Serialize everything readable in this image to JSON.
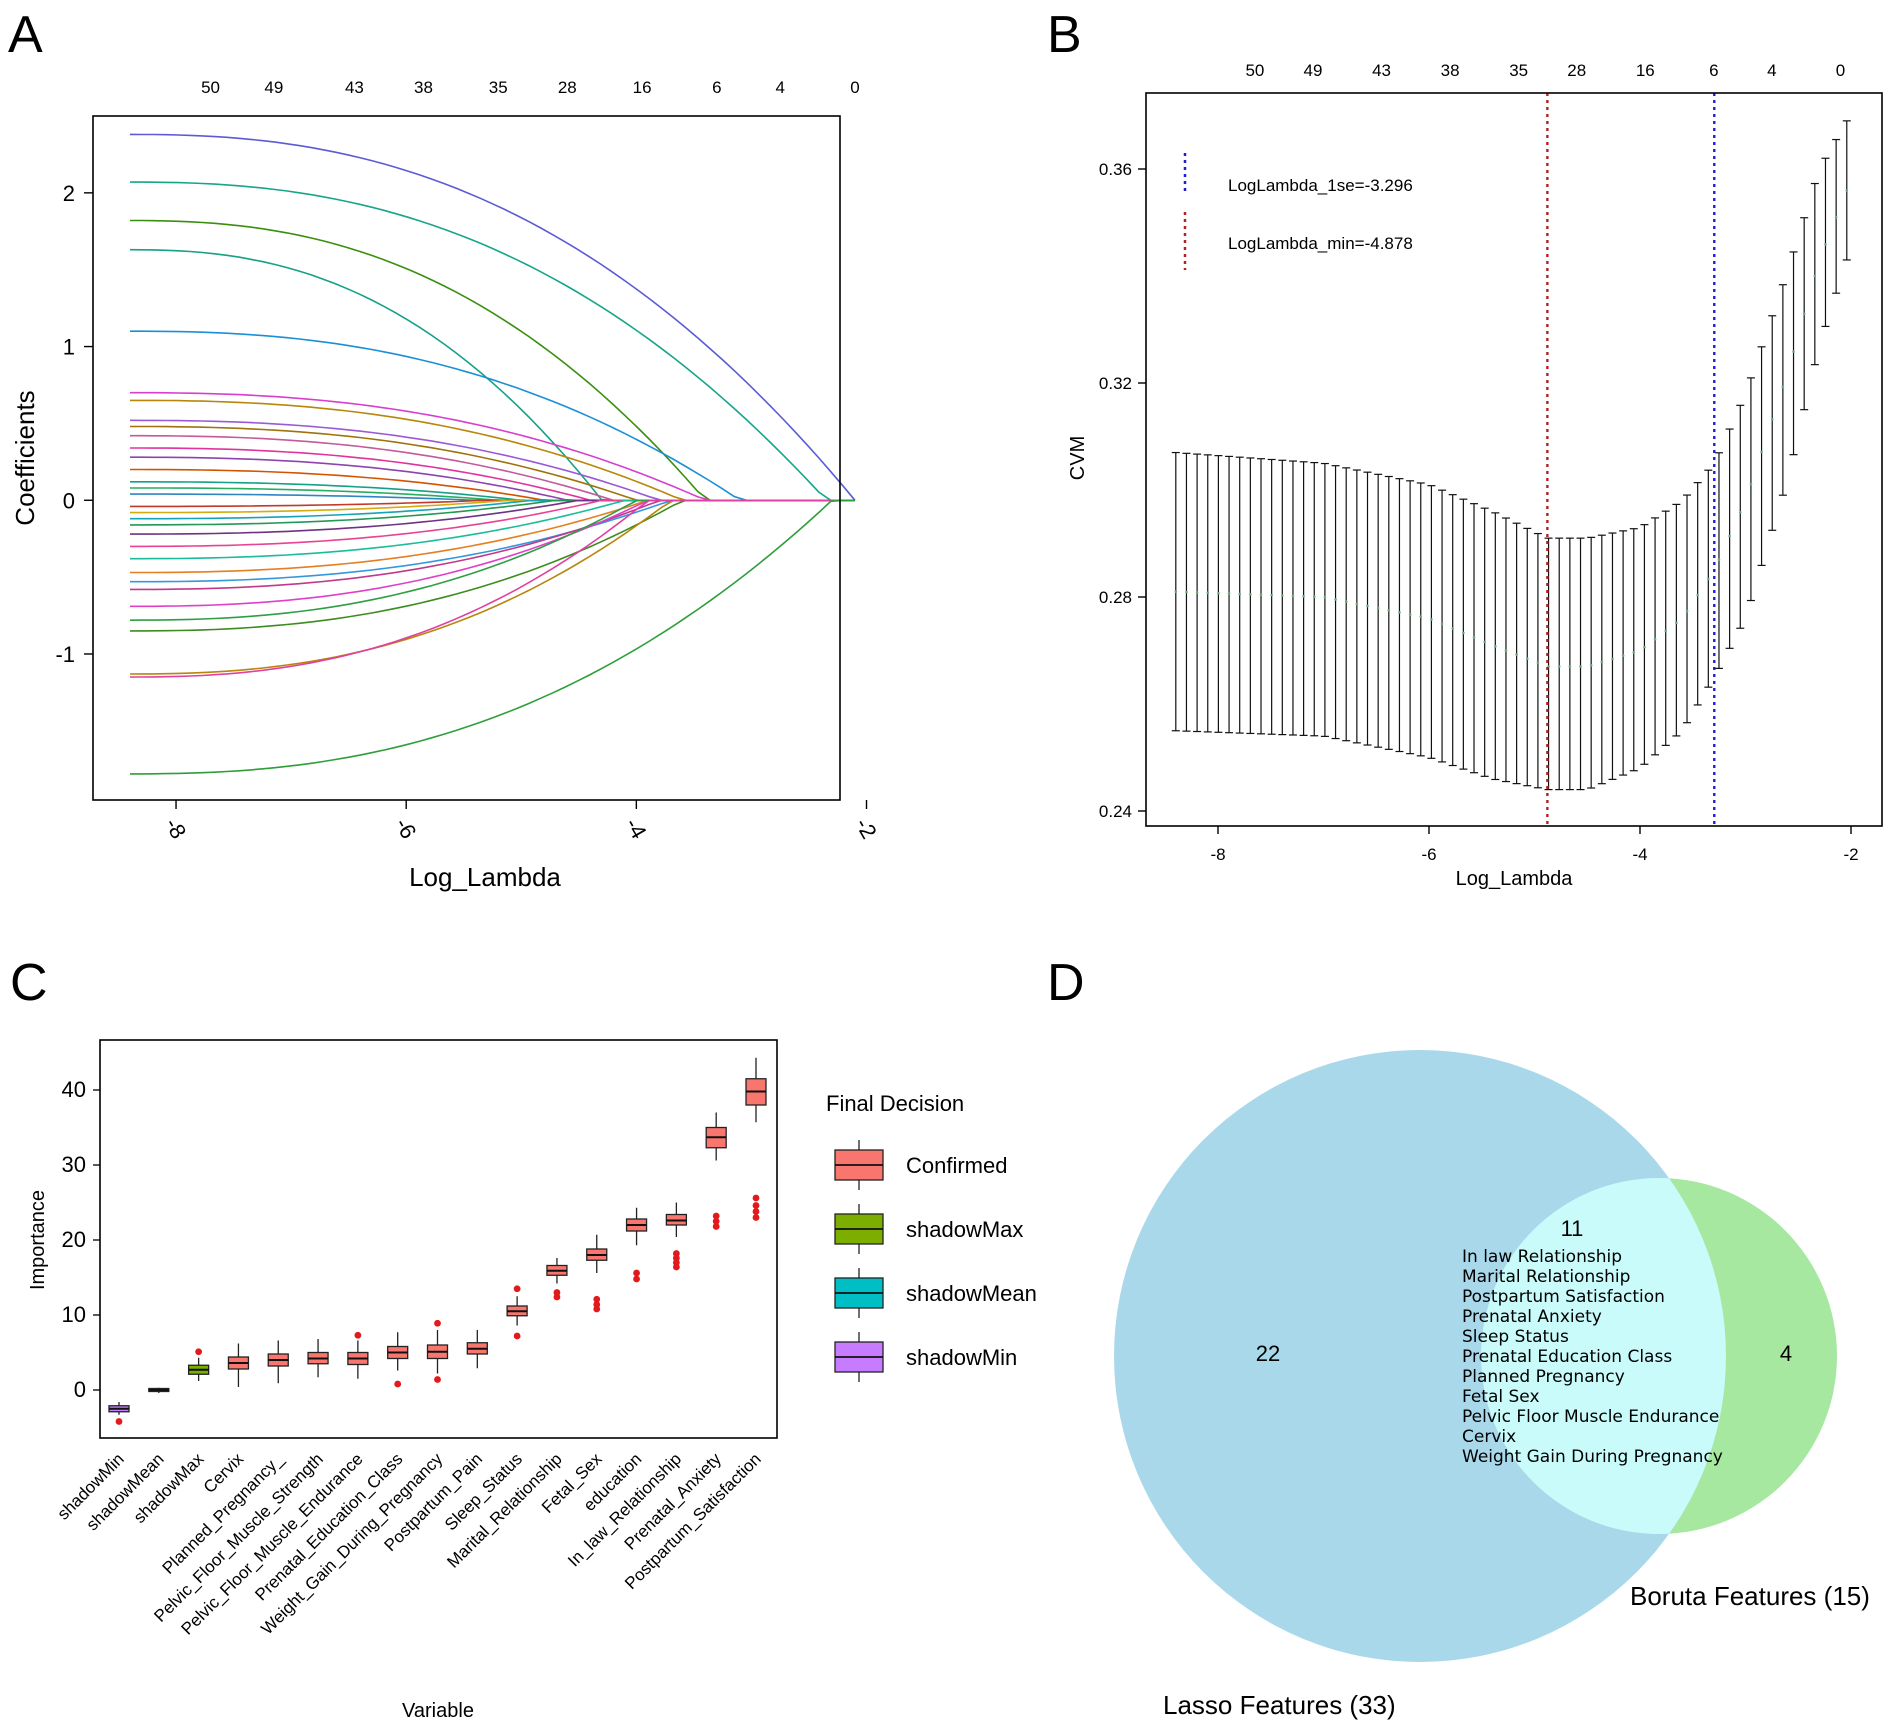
{
  "panels": {
    "a": "A",
    "b": "B",
    "c": "C",
    "d": "D"
  },
  "colors": {
    "confirmed": "#f8766d",
    "shadowMax": "#7cae00",
    "shadowMean": "#00bfc4",
    "shadowMin": "#c77cff",
    "outlier": "#e31a1c",
    "lambda_min_line": "#b22222",
    "lambda_1se_line": "#1f1fd1",
    "lasso_circle": "#a8d8ea",
    "boruta_circle": "#a6e8a0",
    "overlap": "#c9fbfb"
  },
  "chart_data": [
    {
      "id": "A",
      "type": "line",
      "title": "",
      "xlabel": "Log_Lambda",
      "ylabel": "Coefficients",
      "xlim": [
        -8.4,
        -2.0
      ],
      "ylim": [
        -1.95,
        2.5
      ],
      "x_ticks": [
        -8,
        -6,
        -4,
        -2
      ],
      "x_tick_labels": [
        "-8",
        "-6",
        "-4",
        "-2"
      ],
      "y_ticks": [
        -1,
        0,
        1,
        2
      ],
      "y_tick_labels": [
        "-1",
        "0",
        "1",
        "2"
      ],
      "top_ticks": [
        {
          "x": -7.7,
          "label": "50"
        },
        {
          "x": -7.15,
          "label": "49"
        },
        {
          "x": -6.45,
          "label": "43"
        },
        {
          "x": -5.85,
          "label": "38"
        },
        {
          "x": -5.2,
          "label": "35"
        },
        {
          "x": -4.6,
          "label": "28"
        },
        {
          "x": -3.95,
          "label": "16"
        },
        {
          "x": -3.3,
          "label": "6"
        },
        {
          "x": -2.75,
          "label": "4"
        },
        {
          "x": -2.1,
          "label": "0"
        }
      ],
      "path_end": -2.1,
      "series": [
        {
          "start": 2.38,
          "zero_at": -2.1,
          "color": "#5b5bd6"
        },
        {
          "start": 2.07,
          "zero_at": -2.35,
          "color": "#17a589"
        },
        {
          "start": 1.82,
          "zero_at": -3.4,
          "color": "#3a8f0e"
        },
        {
          "start": 1.63,
          "zero_at": -4.3,
          "color": "#16a085"
        },
        {
          "start": 1.1,
          "zero_at": -3.1,
          "color": "#1b8fd6"
        },
        {
          "start": 0.7,
          "zero_at": -3.4,
          "color": "#d63fcf"
        },
        {
          "start": 0.65,
          "zero_at": -3.6,
          "color": "#b8860b"
        },
        {
          "start": 0.52,
          "zero_at": -3.8,
          "color": "#9b59d6"
        },
        {
          "start": 0.48,
          "zero_at": -4.0,
          "color": "#a0720b"
        },
        {
          "start": 0.42,
          "zero_at": -4.2,
          "color": "#c45a9a"
        },
        {
          "start": 0.34,
          "zero_at": -4.4,
          "color": "#e0339c"
        },
        {
          "start": 0.28,
          "zero_at": -4.6,
          "color": "#8e44ad"
        },
        {
          "start": 0.2,
          "zero_at": -4.8,
          "color": "#d35400"
        },
        {
          "start": 0.12,
          "zero_at": -5.0,
          "color": "#16a085"
        },
        {
          "start": 0.08,
          "zero_at": -5.2,
          "color": "#27ae60"
        },
        {
          "start": 0.04,
          "zero_at": -5.4,
          "color": "#2e86c1"
        },
        {
          "start": -0.04,
          "zero_at": -5.3,
          "color": "#c0392b"
        },
        {
          "start": -0.08,
          "zero_at": -5.1,
          "color": "#d4ac0d"
        },
        {
          "start": -0.12,
          "zero_at": -4.9,
          "color": "#17a2b8"
        },
        {
          "start": -0.16,
          "zero_at": -4.7,
          "color": "#229954"
        },
        {
          "start": -0.22,
          "zero_at": -4.5,
          "color": "#6c3483"
        },
        {
          "start": -0.3,
          "zero_at": -4.3,
          "color": "#e84393"
        },
        {
          "start": -0.38,
          "zero_at": -4.1,
          "color": "#1abc9c"
        },
        {
          "start": -0.47,
          "zero_at": -3.9,
          "color": "#e67e22"
        },
        {
          "start": -0.53,
          "zero_at": -3.7,
          "color": "#3498db"
        },
        {
          "start": -0.58,
          "zero_at": -3.8,
          "color": "#c0398b"
        },
        {
          "start": -0.69,
          "zero_at": -3.9,
          "color": "#e040c8"
        },
        {
          "start": -0.78,
          "zero_at": -4.0,
          "color": "#2f9e44"
        },
        {
          "start": -0.85,
          "zero_at": -3.6,
          "color": "#3d8c1f"
        },
        {
          "start": -1.13,
          "zero_at": -3.7,
          "color": "#b8860b"
        },
        {
          "start": -1.15,
          "zero_at": -3.9,
          "color": "#e040a0"
        },
        {
          "start": -1.78,
          "zero_at": -2.3,
          "color": "#2e9e3a"
        }
      ]
    },
    {
      "id": "B",
      "type": "scatter",
      "title": "",
      "xlabel": "Log_Lambda",
      "ylabel": "CVM",
      "xlim": [
        -8.6,
        -1.9
      ],
      "ylim": [
        0.238,
        0.377
      ],
      "x_ticks": [
        -8,
        -6,
        -4,
        -2
      ],
      "x_tick_labels": [
        "-8",
        "-6",
        "-4",
        "-2"
      ],
      "y_ticks": [
        0.24,
        0.28,
        0.32,
        0.36
      ],
      "y_tick_labels": [
        "0.24",
        "0.28",
        "0.32",
        "0.36"
      ],
      "top_ticks": [
        {
          "x": -7.65,
          "label": "50"
        },
        {
          "x": -7.1,
          "label": "49"
        },
        {
          "x": -6.45,
          "label": "43"
        },
        {
          "x": -5.8,
          "label": "38"
        },
        {
          "x": -5.15,
          "label": "35"
        },
        {
          "x": -4.6,
          "label": "28"
        },
        {
          "x": -3.95,
          "label": "16"
        },
        {
          "x": -3.3,
          "label": "6"
        },
        {
          "x": -2.75,
          "label": "4"
        },
        {
          "x": -2.1,
          "label": "0"
        }
      ],
      "error_bar_range": {
        "x_start": -8.4,
        "x_end": -2.04,
        "count": 64
      },
      "cv_profile": [
        {
          "x": -8.4,
          "mean": 0.281,
          "lower": 0.255,
          "upper": 0.307
        },
        {
          "x": -7.0,
          "mean": 0.28,
          "lower": 0.254,
          "upper": 0.305
        },
        {
          "x": -6.0,
          "mean": 0.276,
          "lower": 0.25,
          "upper": 0.301
        },
        {
          "x": -5.4,
          "mean": 0.271,
          "lower": 0.246,
          "upper": 0.296
        },
        {
          "x": -4.878,
          "mean": 0.267,
          "lower": 0.244,
          "upper": 0.291
        },
        {
          "x": -4.5,
          "mean": 0.267,
          "lower": 0.244,
          "upper": 0.291
        },
        {
          "x": -4.0,
          "mean": 0.27,
          "lower": 0.248,
          "upper": 0.293
        },
        {
          "x": -3.6,
          "mean": 0.276,
          "lower": 0.255,
          "upper": 0.298
        },
        {
          "x": -3.296,
          "mean": 0.285,
          "lower": 0.265,
          "upper": 0.305
        },
        {
          "x": -3.0,
          "mean": 0.298,
          "lower": 0.276,
          "upper": 0.318
        },
        {
          "x": -2.6,
          "mean": 0.322,
          "lower": 0.302,
          "upper": 0.341
        },
        {
          "x": -2.3,
          "mean": 0.343,
          "lower": 0.327,
          "upper": 0.36
        },
        {
          "x": -2.04,
          "mean": 0.356,
          "lower": 0.343,
          "upper": 0.369
        }
      ],
      "vlines": [
        {
          "x": -4.878,
          "color_key": "lambda_min_line"
        },
        {
          "x": -3.296,
          "color_key": "lambda_1se_line"
        }
      ],
      "legend": [
        {
          "label": "LogLambda_1se=-3.296",
          "color_key": "lambda_1se_line"
        },
        {
          "label": "LogLambda_min=-4.878",
          "color_key": "lambda_min_line"
        }
      ]
    },
    {
      "id": "C",
      "type": "box",
      "title": "",
      "xlabel": "Variable",
      "ylabel": "Importance",
      "ylim": [
        -6,
        48
      ],
      "y_ticks": [
        0,
        10,
        20,
        30,
        40
      ],
      "y_tick_labels": [
        "0",
        "10",
        "20",
        "30",
        "40"
      ],
      "legend_title": "Final Decision",
      "legend": [
        {
          "label": "Confirmed",
          "color_key": "confirmed"
        },
        {
          "label": "shadowMax",
          "color_key": "shadowMax"
        },
        {
          "label": "shadowMean",
          "color_key": "shadowMean"
        },
        {
          "label": "shadowMin",
          "color_key": "shadowMin"
        }
      ],
      "boxes": [
        {
          "label": "shadowMin",
          "group": "shadowMin",
          "min": -3.3,
          "q1": -2.9,
          "median": -2.5,
          "q3": -2.1,
          "max": -1.6,
          "outliers": [
            -4.2
          ]
        },
        {
          "label": "shadowMean",
          "group": "shadowMean",
          "min": -0.4,
          "q1": -0.2,
          "median": 0.0,
          "q3": 0.2,
          "max": 0.3,
          "outliers": []
        },
        {
          "label": "shadowMax",
          "group": "shadowMax",
          "min": 1.2,
          "q1": 2.1,
          "median": 2.7,
          "q3": 3.3,
          "max": 4.3,
          "outliers": [
            5.1
          ]
        },
        {
          "label": "Cervix",
          "group": "Confirmed",
          "min": 0.4,
          "q1": 2.8,
          "median": 3.6,
          "q3": 4.4,
          "max": 6.2,
          "outliers": []
        },
        {
          "label": "Planned_Pregnancy_",
          "group": "Confirmed",
          "min": 0.9,
          "q1": 3.2,
          "median": 4.0,
          "q3": 4.8,
          "max": 6.6,
          "outliers": []
        },
        {
          "label": "Pelvic_Floor_Muscle_Strength",
          "group": "Confirmed",
          "min": 1.7,
          "q1": 3.5,
          "median": 4.2,
          "q3": 5.0,
          "max": 6.8,
          "outliers": []
        },
        {
          "label": "Pelvic_Floor_Muscle_Endurance",
          "group": "Confirmed",
          "min": 1.5,
          "q1": 3.4,
          "median": 4.2,
          "q3": 5.0,
          "max": 6.6,
          "outliers": [
            7.3
          ]
        },
        {
          "label": "Prenatal_Education_Class",
          "group": "Confirmed",
          "min": 2.6,
          "q1": 4.2,
          "median": 5.0,
          "q3": 5.8,
          "max": 7.7,
          "outliers": [
            0.8
          ]
        },
        {
          "label": "Weight_Gain_During_Pregnancy",
          "group": "Confirmed",
          "min": 2.2,
          "q1": 4.2,
          "median": 5.1,
          "q3": 6.0,
          "max": 8.0,
          "outliers": [
            8.9,
            1.4
          ]
        },
        {
          "label": "Postpartum_Pain",
          "group": "Confirmed",
          "min": 2.9,
          "q1": 4.8,
          "median": 5.5,
          "q3": 6.3,
          "max": 8.0,
          "outliers": []
        },
        {
          "label": "Sleep_Status",
          "group": "Confirmed",
          "min": 8.6,
          "q1": 9.9,
          "median": 10.5,
          "q3": 11.2,
          "max": 12.5,
          "outliers": [
            13.5,
            7.2
          ]
        },
        {
          "label": "Marital_Relationship",
          "group": "Confirmed",
          "min": 14.2,
          "q1": 15.3,
          "median": 15.9,
          "q3": 16.6,
          "max": 17.6,
          "outliers": [
            12.4,
            13.0
          ]
        },
        {
          "label": "Fetal_Sex",
          "group": "Confirmed",
          "min": 15.6,
          "q1": 17.3,
          "median": 18.0,
          "q3": 18.8,
          "max": 20.7,
          "outliers": [
            10.8,
            11.4,
            12.1
          ]
        },
        {
          "label": "education",
          "group": "Confirmed",
          "min": 19.3,
          "q1": 21.2,
          "median": 22.0,
          "q3": 22.8,
          "max": 24.3,
          "outliers": [
            14.8,
            15.6
          ]
        },
        {
          "label": "In_law_Relationship",
          "group": "Confirmed",
          "min": 20.4,
          "q1": 22.0,
          "median": 22.6,
          "q3": 23.4,
          "max": 25.0,
          "outliers": [
            16.4,
            17.0,
            17.6,
            18.2
          ]
        },
        {
          "label": "Prenatal_Anxiety",
          "group": "Confirmed",
          "min": 30.6,
          "q1": 32.3,
          "median": 33.7,
          "q3": 35.0,
          "max": 37.0,
          "outliers": [
            21.8,
            22.5,
            23.2
          ]
        },
        {
          "label": "Postpartum_Satisfaction",
          "group": "Confirmed",
          "min": 35.7,
          "q1": 38.0,
          "median": 39.8,
          "q3": 41.5,
          "max": 44.3,
          "outliers": [
            23.0,
            23.8,
            24.6,
            25.6
          ]
        }
      ]
    },
    {
      "id": "D",
      "type": "venn",
      "title": "",
      "sets": [
        {
          "label": "Lasso Features (33)",
          "color_key": "lasso_circle"
        },
        {
          "label": "Boruta Features (15)",
          "color_key": "boruta_circle"
        }
      ],
      "only_lasso": "22",
      "only_boruta": "4",
      "overlap_count": "11",
      "overlap_items": [
        "In law Relationship",
        "Marital Relationship",
        "Postpartum Satisfaction",
        "Prenatal Anxiety",
        "Sleep Status",
        "Prenatal Education Class",
        "Planned Pregnancy",
        "Fetal Sex",
        "Pelvic Floor Muscle Endurance",
        "Cervix",
        "Weight Gain During Pregnancy"
      ]
    }
  ]
}
